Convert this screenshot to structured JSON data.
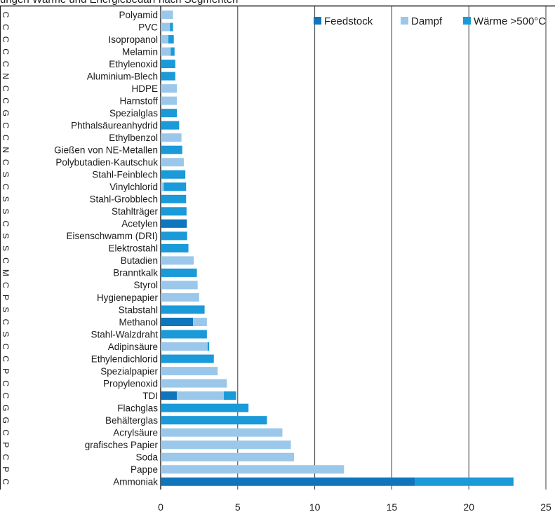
{
  "header_fragment": "ungen Wärme und Energiebedarf nach Segmenten",
  "chart_data": {
    "type": "bar",
    "orientation": "horizontal",
    "stacked": true,
    "xlim": [
      0,
      25
    ],
    "xticks": [
      "0",
      "5",
      "10",
      "15",
      "20",
      "25"
    ],
    "grid": "vertical",
    "legend_position": "top-right",
    "series": [
      {
        "name": "Feedstock",
        "color": "#0f75bc"
      },
      {
        "name": "Dampf",
        "color": "#9bc8ea"
      },
      {
        "name": "Wärme >500°C",
        "color": "#1a9ad8"
      }
    ],
    "rows": [
      {
        "code": "C",
        "label": "Polyamid",
        "values": [
          0,
          0.8,
          0
        ]
      },
      {
        "code": "C",
        "label": "PVC",
        "values": [
          0,
          0.6,
          0.2
        ]
      },
      {
        "code": "C",
        "label": "Isopropanol",
        "values": [
          0,
          0.5,
          0.35
        ]
      },
      {
        "code": "C",
        "label": "Melamin",
        "values": [
          0,
          0.65,
          0.25
        ]
      },
      {
        "code": "C",
        "label": "Ethylenoxid",
        "values": [
          0,
          0,
          0.95
        ]
      },
      {
        "code": "N",
        "label": "Aluminium-Blech",
        "values": [
          0,
          0,
          0.95
        ]
      },
      {
        "code": "C",
        "label": "HDPE",
        "values": [
          0,
          1.05,
          0
        ]
      },
      {
        "code": "C",
        "label": "Harnstoff",
        "values": [
          0,
          1.05,
          0
        ]
      },
      {
        "code": "G",
        "label": "Spezialglas",
        "values": [
          0,
          0,
          1.05
        ]
      },
      {
        "code": "C",
        "label": "Phthalsäureanhydrid",
        "values": [
          0,
          0,
          1.2
        ]
      },
      {
        "code": "C",
        "label": "Ethylbenzol",
        "values": [
          0,
          1.35,
          0
        ]
      },
      {
        "code": "N",
        "label": "Gießen von NE-Metallen",
        "values": [
          0,
          0,
          1.4
        ]
      },
      {
        "code": "C",
        "label": "Polybutadien-Kautschuk",
        "values": [
          0,
          1.5,
          0
        ]
      },
      {
        "code": "S",
        "label": "Stahl-Feinblech",
        "values": [
          0,
          0,
          1.6
        ]
      },
      {
        "code": "C",
        "label": "Vinylchlorid",
        "values": [
          0,
          0.2,
          1.45
        ]
      },
      {
        "code": "S",
        "label": "Stahl-Grobblech",
        "values": [
          0,
          0,
          1.65
        ]
      },
      {
        "code": "S",
        "label": "Stahlträger",
        "values": [
          0,
          0,
          1.68
        ]
      },
      {
        "code": "C",
        "label": "Acetylen",
        "values": [
          1.7,
          0,
          0
        ]
      },
      {
        "code": "S",
        "label": "Eisenschwamm (DRI)",
        "values": [
          0,
          0,
          1.72
        ]
      },
      {
        "code": "S",
        "label": "Elektrostahl",
        "values": [
          0,
          0,
          1.8
        ]
      },
      {
        "code": "C",
        "label": "Butadien",
        "values": [
          0,
          2.15,
          0
        ]
      },
      {
        "code": "M",
        "label": "Branntkalk",
        "values": [
          0,
          0,
          2.35
        ]
      },
      {
        "code": "C",
        "label": "Styrol",
        "values": [
          0,
          2.4,
          0
        ]
      },
      {
        "code": "P",
        "label": "Hygienepapier",
        "values": [
          0,
          2.5,
          0
        ]
      },
      {
        "code": "S",
        "label": "Stabstahl",
        "values": [
          0,
          0,
          2.85
        ]
      },
      {
        "code": "C",
        "label": "Methanol",
        "values": [
          2.1,
          0.9,
          0
        ]
      },
      {
        "code": "S",
        "label": "Stahl-Walzdraht",
        "values": [
          0,
          0,
          3.0
        ]
      },
      {
        "code": "C",
        "label": "Adipinsäure",
        "values": [
          0,
          3.05,
          0.1
        ]
      },
      {
        "code": "C",
        "label": "Ethylendichlorid",
        "values": [
          0,
          0,
          3.45
        ]
      },
      {
        "code": "P",
        "label": "Spezialpapier",
        "values": [
          0,
          3.7,
          0
        ]
      },
      {
        "code": "C",
        "label": "Propylenoxid",
        "values": [
          0,
          4.3,
          0
        ]
      },
      {
        "code": "C",
        "label": "TDI",
        "values": [
          1.05,
          3.05,
          0.8
        ]
      },
      {
        "code": "G",
        "label": "Flachglas",
        "values": [
          0,
          0,
          5.7
        ]
      },
      {
        "code": "G",
        "label": "Behälterglas",
        "values": [
          0,
          0,
          6.9
        ]
      },
      {
        "code": "C",
        "label": "Acrylsäure",
        "values": [
          0,
          7.9,
          0
        ]
      },
      {
        "code": "P",
        "label": "grafisches Papier",
        "values": [
          0,
          8.45,
          0
        ]
      },
      {
        "code": "C",
        "label": "Soda",
        "values": [
          0,
          8.65,
          0
        ]
      },
      {
        "code": "P",
        "label": "Pappe",
        "values": [
          0,
          11.9,
          0
        ]
      },
      {
        "code": "C",
        "label": "Ammoniak",
        "values": [
          16.5,
          0,
          6.4
        ]
      }
    ]
  }
}
